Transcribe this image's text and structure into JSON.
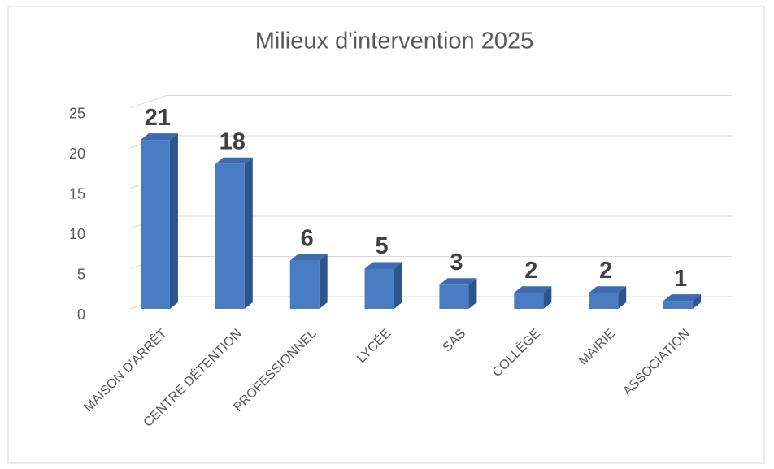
{
  "chart_data": {
    "type": "bar3d",
    "title": "Milieux d'intervention 2025",
    "categories": [
      "MAISON D'ARRÊT",
      "CENTRE DÉTENTION",
      "PROFESSIONNEL",
      "LYCÉE",
      "SAS",
      "COLLÈGE",
      "MAIRIE",
      "ASSOCIATION"
    ],
    "values": [
      21,
      18,
      6,
      5,
      3,
      2,
      2,
      1
    ],
    "color": "#4a7cc4",
    "ylim": [
      0,
      25
    ],
    "yticks": [
      0,
      5,
      10,
      15,
      20,
      25
    ],
    "grid": true
  }
}
